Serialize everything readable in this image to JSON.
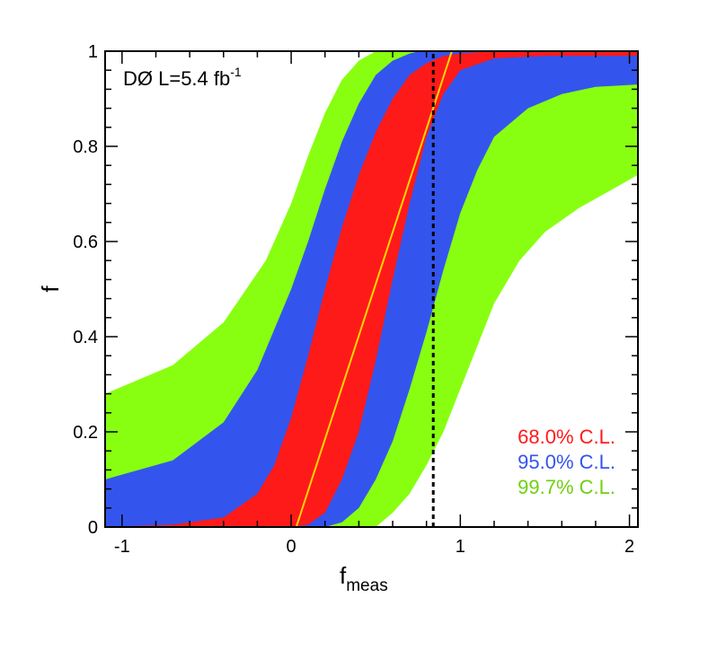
{
  "chart_data": {
    "type": "area",
    "title": "",
    "experiment_label": "DØ L=5.4 fb",
    "experiment_label_sup": "-1",
    "xlabel": "f",
    "xlabel_sub": "meas",
    "ylabel": "f",
    "xlim": [
      -1.1,
      2.05
    ],
    "ylim": [
      0,
      1
    ],
    "x_ticks": [
      -1,
      0,
      1,
      2
    ],
    "y_ticks": [
      0,
      0.2,
      0.4,
      0.6,
      0.8,
      1
    ],
    "x_tick_labels": [
      "-1",
      "0",
      "1",
      "2"
    ],
    "y_tick_labels": [
      "0",
      "0.2",
      "0.4",
      "0.6",
      "0.8",
      "1"
    ],
    "colors": {
      "band_68": "#ff1a1a",
      "band_95": "#3355ee",
      "band_997": "#88ff11",
      "central_line": "#ffd700",
      "measured_line": "#000000"
    },
    "central_line": {
      "x": [
        0.03,
        0.95
      ],
      "f": [
        0.0,
        1.0
      ]
    },
    "measured_value": 0.84,
    "bands": [
      {
        "name": "99.7% C.L.",
        "label": "99.7% C.L.",
        "color_key": "band_997",
        "lower_edge": {
          "x": [
            -1.1,
            -0.7,
            -0.4,
            -0.15,
            0.0,
            0.1,
            0.2,
            0.3,
            0.4,
            0.5
          ],
          "f": [
            0.28,
            0.34,
            0.43,
            0.56,
            0.68,
            0.78,
            0.87,
            0.94,
            0.98,
            1.0
          ]
        },
        "upper_edge": {
          "x": [
            0.5,
            0.6,
            0.7,
            0.8,
            0.9,
            1.0,
            1.1,
            1.2,
            1.35,
            1.5,
            1.7,
            1.9,
            2.05
          ],
          "f": [
            0.0,
            0.03,
            0.07,
            0.13,
            0.2,
            0.29,
            0.38,
            0.47,
            0.56,
            0.62,
            0.67,
            0.71,
            0.74
          ]
        }
      },
      {
        "name": "95.0% C.L.",
        "label": "95.0% C.L.",
        "color_key": "band_95",
        "lower_edge": {
          "x": [
            -1.1,
            -0.7,
            -0.4,
            -0.2,
            0.0,
            0.1,
            0.2,
            0.3,
            0.4,
            0.5,
            0.6,
            0.7,
            0.76
          ],
          "f": [
            0.1,
            0.14,
            0.22,
            0.33,
            0.5,
            0.6,
            0.71,
            0.81,
            0.89,
            0.95,
            0.98,
            0.995,
            1.0
          ]
        },
        "upper_edge": {
          "x": [
            0.2,
            0.3,
            0.4,
            0.5,
            0.6,
            0.7,
            0.8,
            0.9,
            1.0,
            1.1,
            1.2,
            1.4,
            1.6,
            1.8,
            2.05
          ],
          "f": [
            0.0,
            0.01,
            0.04,
            0.1,
            0.18,
            0.29,
            0.41,
            0.54,
            0.66,
            0.75,
            0.82,
            0.88,
            0.91,
            0.925,
            0.93
          ]
        }
      },
      {
        "name": "68.0% C.L.",
        "label": "68.0% C.L.",
        "color_key": "band_68",
        "lower_edge": {
          "x": [
            -1.1,
            -0.7,
            -0.4,
            -0.2,
            -0.1,
            0.0,
            0.1,
            0.2,
            0.3,
            0.4,
            0.5,
            0.6,
            0.7,
            0.8,
            0.9,
            1.0,
            1.2,
            1.5,
            2.05
          ],
          "f": [
            0.0,
            0.005,
            0.02,
            0.07,
            0.13,
            0.23,
            0.36,
            0.5,
            0.63,
            0.74,
            0.83,
            0.9,
            0.95,
            0.975,
            0.99,
            0.995,
            1.0,
            1.0,
            1.0
          ]
        },
        "upper_edge": {
          "x": [
            -1.1,
            -0.5,
            -0.1,
            0.0,
            0.1,
            0.2,
            0.3,
            0.4,
            0.5,
            0.6,
            0.7,
            0.8,
            0.9,
            1.0,
            1.2,
            1.5,
            2.05
          ],
          "f": [
            0.0,
            0.0,
            0.0,
            0.0,
            0.005,
            0.03,
            0.1,
            0.2,
            0.35,
            0.52,
            0.68,
            0.82,
            0.91,
            0.96,
            0.985,
            0.99,
            0.99
          ]
        }
      }
    ]
  }
}
